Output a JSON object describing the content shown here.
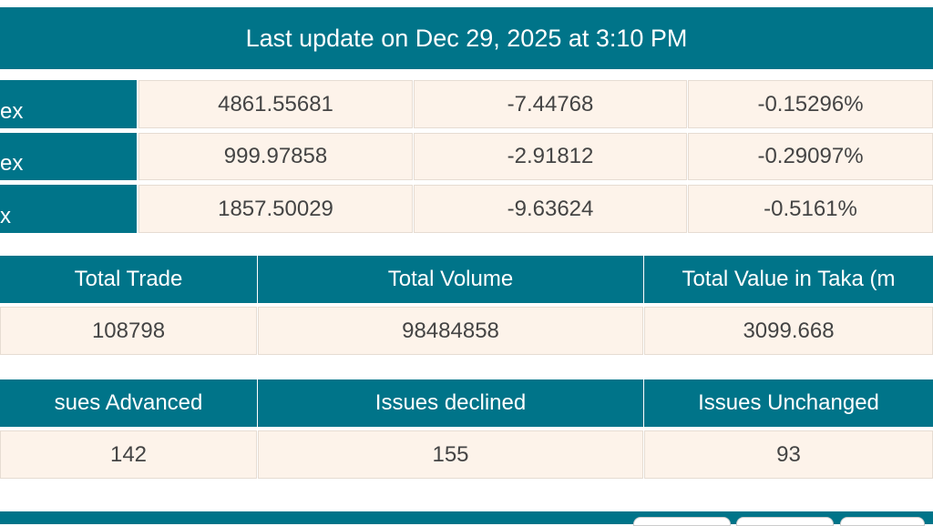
{
  "title": "Last update on Dec 29, 2025 at 3:10 PM",
  "indices": [
    {
      "label": "ex",
      "value": "4861.55681",
      "change": "-7.44768",
      "percent": "-0.15296%"
    },
    {
      "label": "ex",
      "value": "999.97858",
      "change": "-2.91812",
      "percent": "-0.29097%"
    },
    {
      "label": "x",
      "value": "1857.50029",
      "change": "-9.63624",
      "percent": "-0.5161%"
    }
  ],
  "trade": {
    "headers": [
      "Total Trade",
      "Total Volume",
      "Total Value in Taka (m"
    ],
    "values": [
      "108798",
      "98484858",
      "3099.668"
    ]
  },
  "issues": {
    "headers": [
      "sues Advanced",
      "Issues declined",
      "Issues Unchanged"
    ],
    "values": [
      "142",
      "155",
      "93"
    ]
  },
  "colors": {
    "accent": "#007489",
    "cell": "#fdf3ea"
  }
}
